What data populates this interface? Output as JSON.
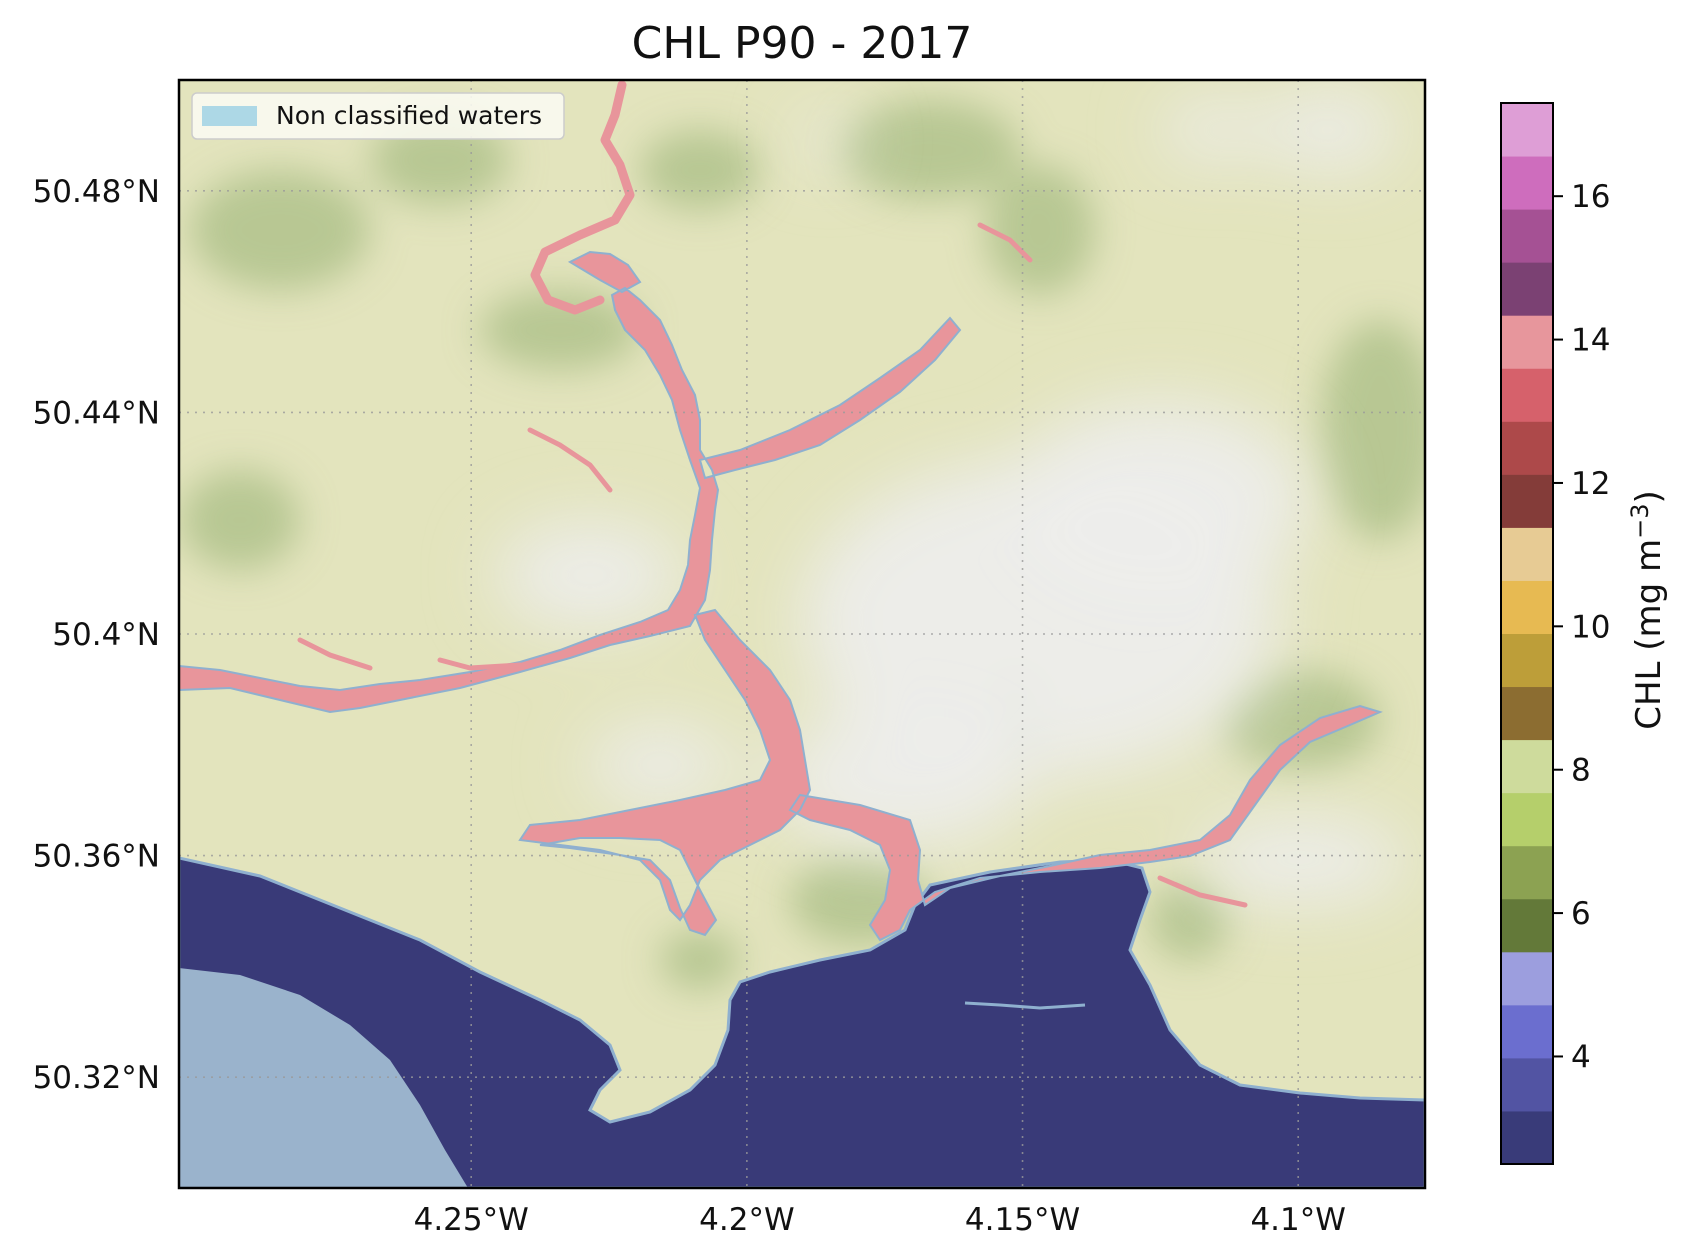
{
  "title": "CHL P90 - 2017",
  "map": {
    "lat_ticks": [
      "50.48°N",
      "50.44°N",
      "50.4°N",
      "50.36°N",
      "50.32°N"
    ],
    "lat_values": [
      50.48,
      50.44,
      50.4,
      50.36,
      50.32
    ],
    "lon_ticks": [
      "4.25°W",
      "4.2°W",
      "4.15°W",
      "4.1°W"
    ],
    "lon_values": [
      -4.25,
      -4.2,
      -4.15,
      -4.1
    ],
    "lat_range": [
      50.3,
      50.5
    ],
    "lon_range": [
      -4.303,
      -4.077
    ],
    "gridlines": true,
    "basemap": "terrain",
    "colors": {
      "land": "#e3e4bd",
      "hills": "#a9bd86",
      "highland": "#ededeb",
      "sea": "#393a78",
      "estuary": "#e8959b",
      "non_classified": "#9ab3cc",
      "waterline": "#8fb0cf"
    }
  },
  "legend": {
    "position": "top-left",
    "label": "Non classified waters",
    "color": "#add8e6"
  },
  "colorbar": {
    "label": "CHL (mg m",
    "label_superscript": "−3",
    "label_close": ")",
    "range": [
      2.5,
      17.3
    ],
    "tick_values": [
      4,
      6,
      8,
      10,
      12,
      14,
      16
    ],
    "tick_labels": [
      "4",
      "6",
      "8",
      "10",
      "12",
      "14",
      "16"
    ],
    "colors": [
      "#393b79",
      "#5254a3",
      "#6b6ecf",
      "#9c9ede",
      "#637939",
      "#8ca252",
      "#b5cf6b",
      "#cedb9c",
      "#8c6d31",
      "#bd9e39",
      "#e7ba52",
      "#e7cb94",
      "#843c39",
      "#ad494a",
      "#d6616b",
      "#e7969c",
      "#7b4173",
      "#a55194",
      "#ce6dbd",
      "#de9ed6"
    ]
  }
}
